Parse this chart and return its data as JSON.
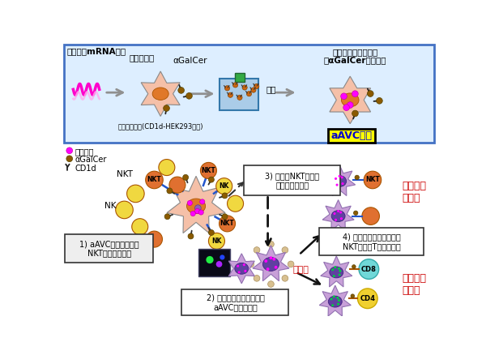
{
  "fig_width": 6.0,
  "fig_height": 4.38,
  "dpi": 100,
  "bg_color": "#ffffff",
  "top_box_color": "#ddeeff",
  "top_box_border": "#4472c4",
  "cell_body_color": "#f5c0a8",
  "cell_nucleus_color": "#e07828",
  "alpha_galcer_color": "#8B5A00",
  "tumor_antigen_color": "#ff00ff",
  "nkt_color": "#e07030",
  "nk_color": "#f0d840",
  "purple_cell_color": "#c8a0d8",
  "purple_nucleus_color": "#6040a0",
  "blue_link_color": "#2255cc",
  "mrna_color": "#ff00cc",
  "arrow_color": "#909090",
  "red_text_color": "#cc0000",
  "yellow_box_color": "#ffff00",
  "cyan_color": "#70d8d8",
  "texts": {
    "t1": "腫癌抗原mRNA作製",
    "t2": "遂伝子導入",
    "t3": "αGalCer",
    "t4": "回収",
    "t5": "腫癌抗原タンパク質",
    "t6": "・αGalCer発現確認",
    "t7": "aAVC作製",
    "t8": "ベクター細胞(CD1d-HEK293細胞)",
    "leg1": "腫癌抗原",
    "leg2": "αGalCer",
    "leg3": "CD1d",
    "s1": "1) aAVCによる生体内\nNKT細胞の活性化",
    "s2": "2) 生体内樹状細胞による\naAVCの取り込み",
    "s3": "3) 活性化NKT細胞に\nよる成熟化刺激",
    "s4": "4) 成熟化樹穏細胞による\nNKT細胞、T細胞活性化",
    "mature": "成熟化",
    "innate": "自然免疫\nの増幅",
    "acquired": "獲得免疫\nの誘導"
  }
}
